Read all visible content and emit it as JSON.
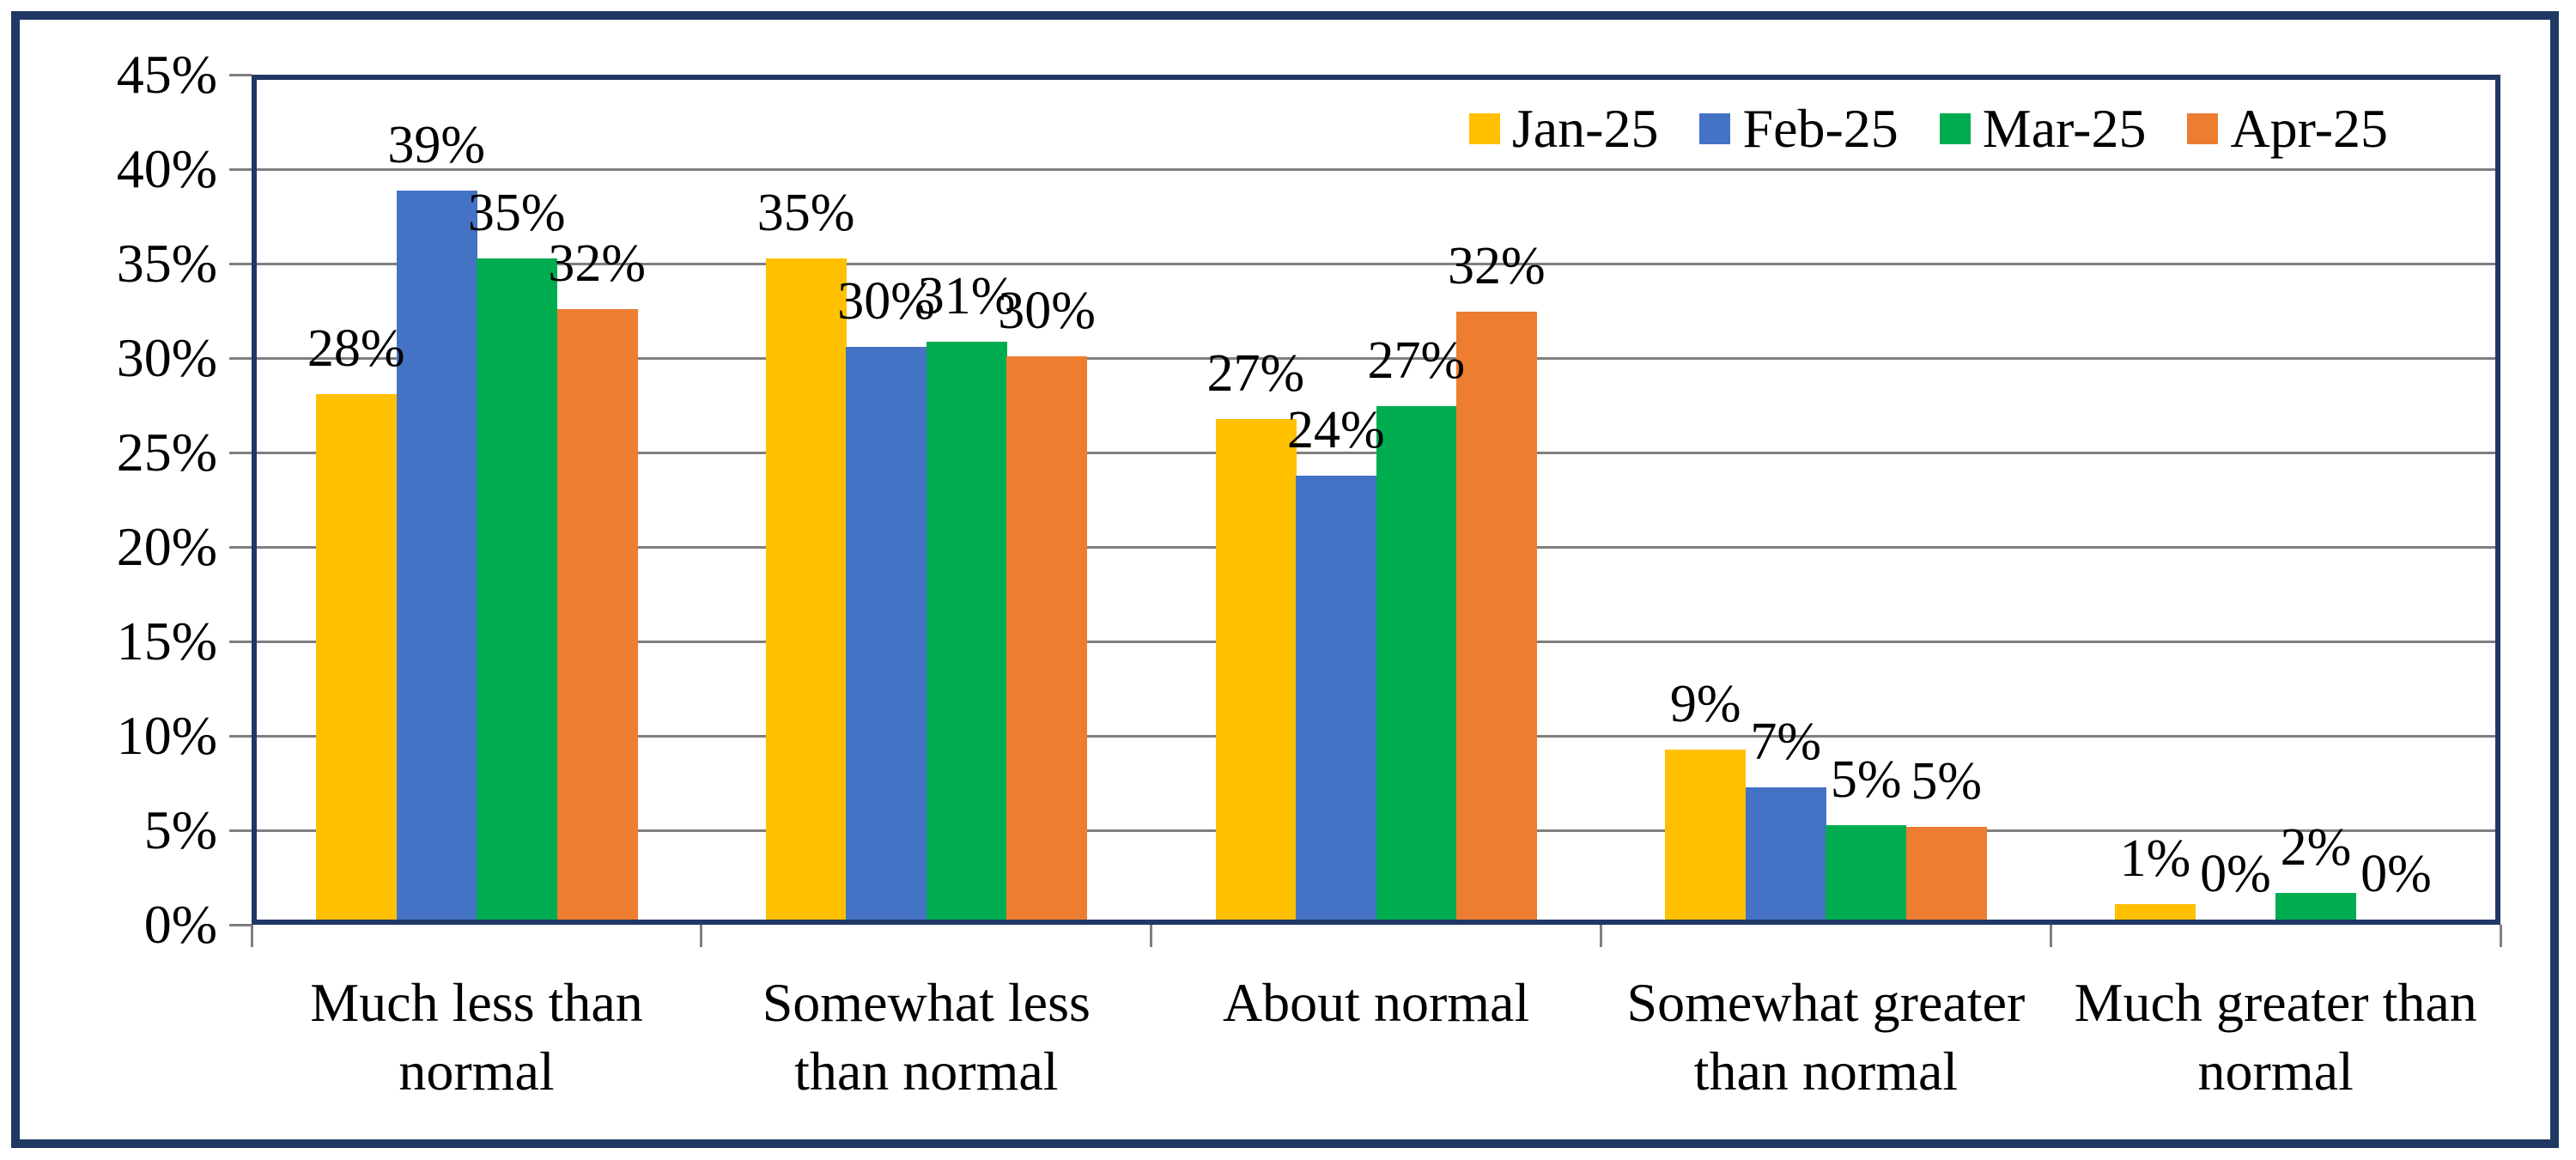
{
  "chart_data": {
    "type": "bar",
    "title": "",
    "xlabel": "",
    "ylabel": "",
    "categories": [
      {
        "name": "Much less than normal",
        "lines": [
          "Much less than",
          "normal"
        ]
      },
      {
        "name": "Somewhat less than normal",
        "lines": [
          "Somewhat less",
          "than normal"
        ]
      },
      {
        "name": "About normal",
        "lines": [
          "About normal"
        ]
      },
      {
        "name": "Somewhat greater than normal",
        "lines": [
          "Somewhat greater",
          "than normal"
        ]
      },
      {
        "name": "Much greater than normal",
        "lines": [
          "Much greater than",
          "normal"
        ]
      }
    ],
    "series": [
      {
        "name": "Jan-25",
        "color": "#FFC000",
        "values": [
          28,
          35,
          27,
          9,
          1
        ],
        "labels": [
          "28%",
          "35%",
          "27%",
          "9%",
          "1%"
        ],
        "bar_heights_pct": [
          27.8,
          35.0,
          26.5,
          9.0,
          0.8
        ]
      },
      {
        "name": "Feb-25",
        "color": "#4472C4",
        "values": [
          39,
          30,
          24,
          7,
          0
        ],
        "labels": [
          "39%",
          "30%",
          "24%",
          "7%",
          "0%"
        ],
        "bar_heights_pct": [
          38.6,
          30.3,
          23.5,
          7.0,
          0.0
        ]
      },
      {
        "name": "Mar-25",
        "color": "#00AC50",
        "values": [
          35,
          31,
          27,
          5,
          2
        ],
        "labels": [
          "35%",
          "31%",
          "27%",
          "5%",
          "2%"
        ],
        "bar_heights_pct": [
          35.0,
          30.6,
          27.2,
          5.0,
          1.4
        ]
      },
      {
        "name": "Apr-25",
        "color": "#ED7D31",
        "values": [
          32,
          30,
          32,
          5,
          0
        ],
        "labels": [
          "32%",
          "30%",
          "32%",
          "5%",
          "0%"
        ],
        "bar_heights_pct": [
          32.3,
          29.8,
          32.2,
          4.9,
          0.0
        ]
      }
    ],
    "y_axis": {
      "tick_labels": [
        "0%",
        "5%",
        "10%",
        "15%",
        "20%",
        "25%",
        "30%",
        "35%",
        "40%",
        "45%"
      ],
      "min": 0,
      "max": 45,
      "step": 5
    },
    "legend": {
      "position": "top-right",
      "entries": [
        "Jan-25",
        "Feb-25",
        "Mar-25",
        "Apr-25"
      ]
    },
    "grid": true,
    "colors": {
      "frame": "#1F3864",
      "gridline": "#7F7F7F",
      "text": "#000000",
      "background": "#FFFFFF"
    }
  }
}
